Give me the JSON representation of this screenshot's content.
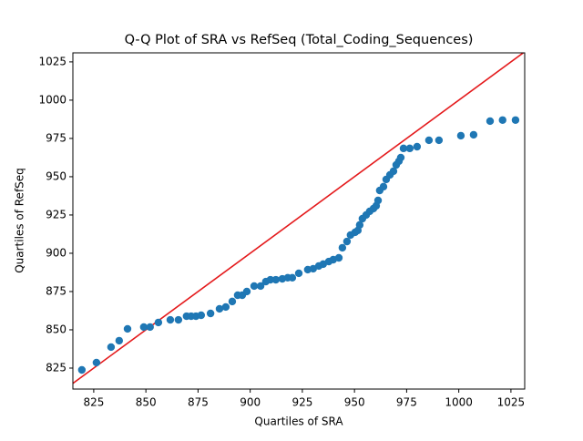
{
  "chart_data": {
    "type": "scatter",
    "title": "Q-Q Plot of SRA vs RefSeq (Total_Coding_Sequences)",
    "x_label": "Quartiles of SRA",
    "y_label": "Quartiles of RefSeq",
    "color": "#1f77b4",
    "reference_line_color": "#e41a1c",
    "xlim": [
      815,
      1031.6
    ],
    "ylim": [
      811.3,
      1030.9
    ],
    "xticks": [
      825,
      850,
      875,
      900,
      925,
      950,
      975,
      1000,
      1025
    ],
    "yticks": [
      825,
      850,
      875,
      900,
      925,
      950,
      975,
      1000,
      1025
    ],
    "x": [
      819.3,
      826.3,
      833.3,
      837.2,
      841.2,
      849,
      852,
      856,
      861.7,
      865.6,
      869.5,
      871.7,
      874,
      876.5,
      881,
      885.3,
      888.3,
      891.4,
      894,
      896.2,
      898.4,
      901.9,
      905,
      907.5,
      909.7,
      912.3,
      915.4,
      918,
      920.2,
      923.3,
      927.6,
      930.2,
      932.9,
      935,
      937.7,
      939.8,
      942.5,
      944.2,
      946.4,
      948.1,
      950.3,
      951.6,
      952.5,
      953.8,
      955.6,
      957.3,
      959.1,
      960.4,
      961.3,
      962.1,
      963.9,
      965.2,
      967,
      968.7,
      970,
      971.3,
      972.2,
      973.5,
      976.5,
      980,
      985.7,
      990.5,
      1001,
      1007.1,
      1015,
      1021,
      1027.2
    ],
    "values": [
      823.8,
      828.6,
      838.7,
      842.9,
      850.6,
      851.8,
      851.8,
      854.8,
      856.5,
      856.5,
      858.9,
      858.9,
      858.9,
      859.5,
      860.7,
      863.7,
      864.9,
      868.5,
      872.6,
      872.6,
      875,
      878.6,
      878.6,
      881.5,
      882.7,
      882.7,
      883.3,
      884,
      884,
      886.9,
      889.3,
      889.9,
      891.7,
      892.9,
      894.6,
      895.8,
      897,
      903.6,
      907.7,
      911.9,
      913.7,
      914.9,
      918.5,
      922.6,
      925,
      927.4,
      929.2,
      931,
      934.5,
      941,
      943.5,
      948.2,
      951.2,
      953.6,
      957.7,
      960.1,
      962.5,
      968.5,
      968.5,
      969.6,
      973.8,
      973.8,
      976.8,
      977.4,
      986.3,
      987,
      987
    ]
  }
}
